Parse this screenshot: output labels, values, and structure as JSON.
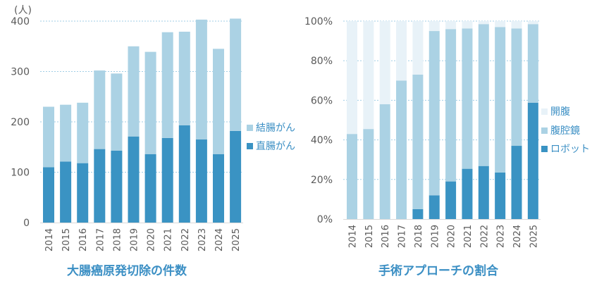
{
  "colors": {
    "rectal": "#3a93c3",
    "colon": "#abd2e4",
    "robot": "#3a93c3",
    "laparoscopic": "#abd2e4",
    "open": "#e8f2f8",
    "text": "#595959",
    "accent": "#3b8fc4",
    "grid": "#9fcde6"
  },
  "chart_data": [
    {
      "type": "bar",
      "stacked": true,
      "title": "大腸癌原発切除の件数",
      "ylabel": "(人)",
      "ylim": [
        0,
        400
      ],
      "yticks": [
        "0",
        "100",
        "200",
        "300",
        "400"
      ],
      "grid": true,
      "legend": "right",
      "categories": [
        "2014",
        "2015",
        "2016",
        "2017",
        "2018",
        "2019",
        "2020",
        "2021",
        "2022",
        "2023",
        "2024",
        "2025"
      ],
      "series": [
        {
          "name": "直腸がん",
          "values": [
            110,
            121,
            118,
            146,
            143,
            171,
            136,
            168,
            193,
            165,
            136,
            182
          ]
        },
        {
          "name": "結腸がん",
          "values": [
            120,
            113,
            120,
            156,
            153,
            179,
            203,
            210,
            186,
            238,
            209,
            223
          ]
        }
      ]
    },
    {
      "type": "bar",
      "stacked": true,
      "title": "手術アプローチの割合",
      "ylim": [
        0,
        100
      ],
      "yticks": [
        "0%",
        "20%",
        "40%",
        "60%",
        "80%",
        "100%"
      ],
      "grid": true,
      "legend": "right",
      "categories": [
        "2014",
        "2015",
        "2016",
        "2017",
        "2018",
        "2019",
        "2020",
        "2021",
        "2022",
        "2023",
        "2024",
        "2025"
      ],
      "series": [
        {
          "name": "ロボット",
          "values": [
            0,
            0,
            0,
            0,
            5,
            12,
            19,
            25.4,
            26.8,
            23.5,
            37,
            58.8
          ]
        },
        {
          "name": "腹腔鏡",
          "values": [
            43,
            45.5,
            58,
            70,
            68,
            83,
            77,
            70.9,
            71.7,
            73.5,
            59.3,
            39.7
          ]
        },
        {
          "name": "開腹",
          "values": [
            57,
            54.5,
            42,
            30,
            27,
            5,
            4,
            3.7,
            1.5,
            3,
            3.7,
            1.5
          ]
        }
      ],
      "legend_order": [
        "開腹",
        "腹腔鏡",
        "ロボット"
      ]
    }
  ]
}
